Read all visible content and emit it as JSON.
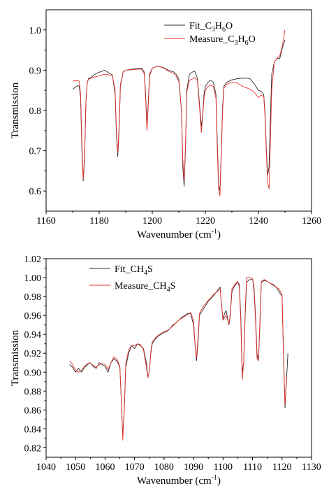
{
  "chart_data": [
    {
      "type": "line",
      "xlabel": "Wavenumber (cm-1)",
      "xlabel_main": "Wavenumber (cm",
      "xlabel_sup": "-1",
      "xlabel_close": ")",
      "ylabel": "Transmission",
      "xlim": [
        1160,
        1260
      ],
      "ylim": [
        0.55,
        1.05
      ],
      "xticks": [
        1160,
        1180,
        1200,
        1220,
        1240,
        1260
      ],
      "yticks": [
        0.6,
        0.7,
        0.8,
        0.9,
        1.0
      ],
      "ytick_decimals": 1,
      "legend_position": "top-center",
      "series": [
        {
          "name": "Fit_C3H6O",
          "label_parts": [
            [
              "Fit_C",
              ""
            ],
            [
              "3",
              "sub"
            ],
            [
              "H",
              ""
            ],
            [
              "6",
              "sub"
            ],
            [
              "O",
              ""
            ]
          ],
          "color": "#2b2b2b",
          "x": [
            1170,
            1171,
            1172,
            1172.5,
            1173,
            1173.5,
            1174,
            1174.5,
            1175,
            1175.5,
            1176,
            1177,
            1178,
            1179,
            1180,
            1181,
            1182,
            1183,
            1184,
            1185,
            1186,
            1186.5,
            1187,
            1187.5,
            1188,
            1189,
            1190,
            1192,
            1194,
            1196,
            1197,
            1197.5,
            1198,
            1198.5,
            1199,
            1200,
            1202,
            1204,
            1206,
            1208,
            1209,
            1210,
            1211,
            1211.5,
            1212,
            1212.5,
            1213,
            1214,
            1215,
            1216,
            1217,
            1218,
            1218.5,
            1219,
            1219.5,
            1220,
            1221,
            1222,
            1223,
            1224,
            1224.5,
            1225,
            1225.5,
            1226,
            1226.5,
            1227,
            1228,
            1230,
            1232,
            1234,
            1236,
            1237,
            1238,
            1239,
            1240,
            1241,
            1242,
            1242.5,
            1243,
            1243.5,
            1244,
            1244.5,
            1245,
            1246,
            1247,
            1248,
            1249,
            1250
          ],
          "y": [
            0.852,
            0.858,
            0.862,
            0.86,
            0.83,
            0.7,
            0.625,
            0.68,
            0.82,
            0.868,
            0.88,
            0.882,
            0.888,
            0.892,
            0.895,
            0.897,
            0.9,
            0.896,
            0.892,
            0.888,
            0.84,
            0.74,
            0.685,
            0.75,
            0.86,
            0.896,
            0.9,
            0.902,
            0.904,
            0.905,
            0.895,
            0.84,
            0.76,
            0.82,
            0.89,
            0.905,
            0.91,
            0.907,
            0.9,
            0.896,
            0.89,
            0.878,
            0.8,
            0.66,
            0.612,
            0.7,
            0.85,
            0.89,
            0.895,
            0.898,
            0.88,
            0.8,
            0.76,
            0.79,
            0.84,
            0.86,
            0.87,
            0.875,
            0.87,
            0.84,
            0.72,
            0.615,
            0.6,
            0.7,
            0.81,
            0.86,
            0.87,
            0.876,
            0.879,
            0.88,
            0.88,
            0.878,
            0.87,
            0.86,
            0.85,
            0.848,
            0.84,
            0.79,
            0.7,
            0.64,
            0.66,
            0.78,
            0.89,
            0.92,
            0.93,
            0.928,
            0.955,
            0.975
          ]
        },
        {
          "name": "Measure_C3H6O",
          "label_parts": [
            [
              "Measure_C",
              ""
            ],
            [
              "3",
              "sub"
            ],
            [
              "H",
              ""
            ],
            [
              "6",
              "sub"
            ],
            [
              "O",
              ""
            ]
          ],
          "color": "#e8322e",
          "x": [
            1170,
            1171,
            1172,
            1172.5,
            1173,
            1173.5,
            1174,
            1174.5,
            1175,
            1175.5,
            1176,
            1177,
            1178,
            1179,
            1180,
            1181,
            1182,
            1183,
            1184,
            1185,
            1186,
            1186.5,
            1187,
            1187.5,
            1188,
            1189,
            1190,
            1192,
            1194,
            1196,
            1197,
            1197.5,
            1198,
            1198.5,
            1199,
            1200,
            1202,
            1204,
            1206,
            1208,
            1209,
            1210,
            1211,
            1211.5,
            1212,
            1212.5,
            1213,
            1214,
            1215,
            1216,
            1217,
            1218,
            1218.5,
            1219,
            1219.5,
            1220,
            1221,
            1222,
            1223,
            1224,
            1224.5,
            1225,
            1225.5,
            1226,
            1226.5,
            1227,
            1228,
            1230,
            1232,
            1234,
            1236,
            1237,
            1238,
            1239,
            1240,
            1241,
            1242,
            1242.5,
            1243,
            1243.5,
            1244,
            1244.5,
            1245,
            1246,
            1247,
            1248,
            1249,
            1250
          ],
          "y": [
            0.873,
            0.874,
            0.874,
            0.872,
            0.84,
            0.72,
            0.63,
            0.69,
            0.825,
            0.87,
            0.878,
            0.88,
            0.883,
            0.884,
            0.886,
            0.888,
            0.89,
            0.889,
            0.888,
            0.887,
            0.85,
            0.75,
            0.695,
            0.76,
            0.865,
            0.895,
            0.9,
            0.901,
            0.902,
            0.903,
            0.89,
            0.83,
            0.75,
            0.81,
            0.885,
            0.905,
            0.91,
            0.906,
            0.898,
            0.892,
            0.885,
            0.872,
            0.8,
            0.68,
            0.625,
            0.71,
            0.845,
            0.875,
            0.878,
            0.882,
            0.875,
            0.79,
            0.745,
            0.785,
            0.83,
            0.85,
            0.86,
            0.862,
            0.86,
            0.83,
            0.7,
            0.605,
            0.588,
            0.69,
            0.8,
            0.855,
            0.865,
            0.87,
            0.868,
            0.86,
            0.855,
            0.852,
            0.848,
            0.84,
            0.832,
            0.838,
            0.835,
            0.78,
            0.69,
            0.62,
            0.605,
            0.72,
            0.85,
            0.92,
            0.93,
            0.935,
            0.96,
            1.0
          ]
        }
      ]
    },
    {
      "type": "line",
      "xlabel": "Wavenumber (cm-1)",
      "xlabel_main": "Wavenumber (cm",
      "xlabel_sup": "-1",
      "xlabel_close": ")",
      "ylabel": "Transmission",
      "xlim": [
        1040,
        1130
      ],
      "ylim": [
        0.81,
        1.02
      ],
      "xticks": [
        1040,
        1050,
        1060,
        1070,
        1080,
        1090,
        1100,
        1110,
        1120,
        1130
      ],
      "yticks": [
        0.82,
        0.84,
        0.86,
        0.88,
        0.9,
        0.92,
        0.94,
        0.96,
        0.98,
        1.0,
        1.02
      ],
      "ytick_decimals": 2,
      "legend_position": "top-left",
      "series": [
        {
          "name": "Fit_CH4S",
          "label_parts": [
            [
              "Fit_CH",
              ""
            ],
            [
              "4",
              "sub"
            ],
            [
              "S",
              ""
            ]
          ],
          "color": "#2b2b2b",
          "x": [
            1048,
            1049,
            1050,
            1051,
            1052,
            1053,
            1054,
            1055,
            1056,
            1057,
            1058,
            1059,
            1060,
            1061,
            1062,
            1063,
            1064,
            1065,
            1065.5,
            1066,
            1066.5,
            1067,
            1068,
            1069,
            1070,
            1071,
            1072,
            1073,
            1074,
            1074.5,
            1075,
            1075.5,
            1076,
            1077,
            1078,
            1079,
            1080,
            1081,
            1082,
            1083,
            1084,
            1085,
            1086,
            1087,
            1088,
            1089,
            1090,
            1090.5,
            1091,
            1091.5,
            1092,
            1093,
            1094,
            1095,
            1096,
            1097,
            1098,
            1099,
            1099.5,
            1100,
            1100.5,
            1101,
            1101.5,
            1102,
            1102.5,
            1103,
            1104,
            1105,
            1105.5,
            1106,
            1106.5,
            1107,
            1107.5,
            1108,
            1109,
            1110,
            1110.5,
            1111,
            1111.5,
            1112,
            1112.5,
            1113,
            1114,
            1115,
            1116,
            1117,
            1118,
            1119,
            1120,
            1120.5,
            1121,
            1121.5,
            1122
          ],
          "y": [
            0.908,
            0.905,
            0.9,
            0.904,
            0.9,
            0.905,
            0.908,
            0.91,
            0.906,
            0.904,
            0.91,
            0.908,
            0.906,
            0.9,
            0.91,
            0.914,
            0.912,
            0.905,
            0.87,
            0.832,
            0.86,
            0.905,
            0.92,
            0.928,
            0.925,
            0.93,
            0.928,
            0.925,
            0.91,
            0.895,
            0.9,
            0.92,
            0.93,
            0.935,
            0.938,
            0.94,
            0.942,
            0.943,
            0.946,
            0.95,
            0.952,
            0.955,
            0.958,
            0.96,
            0.962,
            0.962,
            0.95,
            0.93,
            0.912,
            0.93,
            0.96,
            0.965,
            0.97,
            0.975,
            0.978,
            0.982,
            0.986,
            0.99,
            0.97,
            0.955,
            0.962,
            0.965,
            0.958,
            0.95,
            0.962,
            0.985,
            0.992,
            0.995,
            0.993,
            0.96,
            0.9,
            0.91,
            0.96,
            0.995,
            0.998,
            0.998,
            0.99,
            0.96,
            0.92,
            0.912,
            0.95,
            0.995,
            0.997,
            0.996,
            0.994,
            0.992,
            0.99,
            0.985,
            0.98,
            0.92,
            0.862,
            0.89,
            0.92
          ]
        },
        {
          "name": "Measure_CH4S",
          "label_parts": [
            [
              "Measure_CH",
              ""
            ],
            [
              "4",
              "sub"
            ],
            [
              "S",
              ""
            ]
          ],
          "color": "#e8322e",
          "x": [
            1048,
            1049,
            1050,
            1051,
            1052,
            1053,
            1054,
            1055,
            1056,
            1057,
            1058,
            1059,
            1060,
            1061,
            1062,
            1063,
            1064,
            1065,
            1065.5,
            1066,
            1066.5,
            1067,
            1068,
            1069,
            1070,
            1071,
            1072,
            1073,
            1074,
            1074.5,
            1075,
            1075.5,
            1076,
            1077,
            1078,
            1079,
            1080,
            1081,
            1082,
            1083,
            1084,
            1085,
            1086,
            1087,
            1088,
            1089,
            1090,
            1090.5,
            1091,
            1091.5,
            1092,
            1093,
            1094,
            1095,
            1096,
            1097,
            1098,
            1099,
            1099.5,
            1100,
            1100.5,
            1101,
            1101.5,
            1102,
            1102.5,
            1103,
            1104,
            1105,
            1105.5,
            1106,
            1106.5,
            1107,
            1107.5,
            1108,
            1109,
            1110,
            1110.5,
            1111,
            1111.5,
            1112,
            1112.5,
            1113,
            1114,
            1115,
            1116,
            1117,
            1118,
            1119,
            1120,
            1120.5,
            1121,
            1121.5
          ],
          "y": [
            0.912,
            0.908,
            0.902,
            0.9,
            0.902,
            0.906,
            0.909,
            0.91,
            0.907,
            0.905,
            0.908,
            0.909,
            0.908,
            0.903,
            0.91,
            0.916,
            0.914,
            0.906,
            0.87,
            0.828,
            0.86,
            0.908,
            0.924,
            0.928,
            0.928,
            0.93,
            0.929,
            0.924,
            0.905,
            0.894,
            0.9,
            0.922,
            0.932,
            0.936,
            0.939,
            0.941,
            0.943,
            0.944,
            0.946,
            0.949,
            0.952,
            0.955,
            0.957,
            0.959,
            0.961,
            0.963,
            0.955,
            0.93,
            0.915,
            0.935,
            0.962,
            0.968,
            0.972,
            0.976,
            0.979,
            0.983,
            0.985,
            0.988,
            0.972,
            0.955,
            0.958,
            0.96,
            0.956,
            0.95,
            0.965,
            0.988,
            0.993,
            0.996,
            0.99,
            0.955,
            0.892,
            0.91,
            0.965,
            1.0,
            1.0,
            0.999,
            0.985,
            0.955,
            0.915,
            0.912,
            0.955,
            0.996,
            0.998,
            0.996,
            0.994,
            0.993,
            0.99,
            0.988,
            0.982,
            0.915,
            0.865,
            0.895
          ]
        }
      ]
    }
  ]
}
